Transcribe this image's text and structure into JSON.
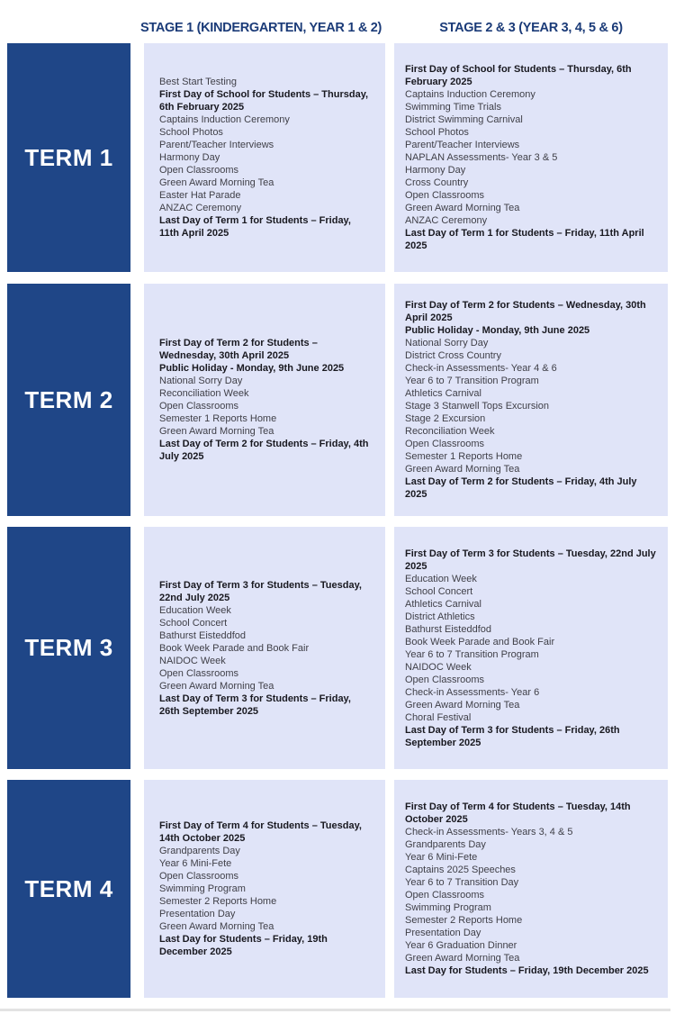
{
  "headers": {
    "stage1": "STAGE 1 (KINDERGARTEN, YEAR 1 & 2)",
    "stage23": "STAGE 2 & 3 (YEAR 3, 4, 5 & 6)"
  },
  "colors": {
    "term_box_blue": "#1f4687",
    "panel_lavender": "#e0e4f8",
    "header_navy": "#1b3b78",
    "body_text": "#3f3f47",
    "bold_text": "#191920"
  },
  "terms": [
    {
      "label": "TERM 1",
      "stage1": [
        {
          "text": "Best Start Testing",
          "bold": false
        },
        {
          "text": "First Day of School for Students – Thursday, 6th February 2025",
          "bold": true
        },
        {
          "text": "Captains Induction Ceremony",
          "bold": false
        },
        {
          "text": "School Photos",
          "bold": false
        },
        {
          "text": "Parent/Teacher Interviews",
          "bold": false
        },
        {
          "text": "Harmony Day",
          "bold": false
        },
        {
          "text": "Open Classrooms",
          "bold": false
        },
        {
          "text": "Green Award Morning Tea",
          "bold": false
        },
        {
          "text": "Easter Hat Parade",
          "bold": false
        },
        {
          "text": "ANZAC Ceremony",
          "bold": false
        },
        {
          "text": "Last Day of Term 1 for Students – Friday, 11th April 2025",
          "bold": true
        }
      ],
      "stage23": [
        {
          "text": "First Day of School for Students – Thursday, 6th February 2025",
          "bold": true
        },
        {
          "text": "Captains Induction Ceremony",
          "bold": false
        },
        {
          "text": "Swimming Time Trials",
          "bold": false
        },
        {
          "text": "District Swimming Carnival",
          "bold": false
        },
        {
          "text": "School Photos",
          "bold": false
        },
        {
          "text": "Parent/Teacher Interviews",
          "bold": false
        },
        {
          "text": "NAPLAN Assessments- Year 3 & 5",
          "bold": false
        },
        {
          "text": "Harmony Day",
          "bold": false
        },
        {
          "text": "Cross Country",
          "bold": false
        },
        {
          "text": "Open Classrooms",
          "bold": false
        },
        {
          "text": "Green Award Morning Tea",
          "bold": false
        },
        {
          "text": "ANZAC Ceremony",
          "bold": false
        },
        {
          "text": "Last Day of Term 1 for Students – Friday, 11th April 2025",
          "bold": true
        }
      ]
    },
    {
      "label": "TERM 2",
      "stage1": [
        {
          "text": "First Day of Term 2 for Students – Wednesday, 30th April 2025",
          "bold": true
        },
        {
          "text": "Public Holiday - Monday, 9th June 2025",
          "bold": true
        },
        {
          "text": "National Sorry Day",
          "bold": false
        },
        {
          "text": "Reconciliation Week",
          "bold": false
        },
        {
          "text": "Open Classrooms",
          "bold": false
        },
        {
          "text": "Semester 1 Reports Home",
          "bold": false
        },
        {
          "text": "Green Award Morning Tea",
          "bold": false
        },
        {
          "text": "Last Day of Term 2 for Students – Friday, 4th July 2025",
          "bold": true
        }
      ],
      "stage23": [
        {
          "text": "First Day of Term 2 for Students – Wednesday, 30th April 2025",
          "bold": true
        },
        {
          "text": "Public Holiday - Monday, 9th June 2025",
          "bold": true
        },
        {
          "text": "National Sorry Day",
          "bold": false
        },
        {
          "text": "District Cross Country",
          "bold": false
        },
        {
          "text": "Check-in Assessments- Year 4 & 6",
          "bold": false
        },
        {
          "text": "Year 6 to 7 Transition Program",
          "bold": false
        },
        {
          "text": "Athletics Carnival",
          "bold": false
        },
        {
          "text": "Stage 3 Stanwell Tops Excursion",
          "bold": false
        },
        {
          "text": "Stage 2 Excursion",
          "bold": false
        },
        {
          "text": "Reconciliation Week",
          "bold": false
        },
        {
          "text": "Open Classrooms",
          "bold": false
        },
        {
          "text": "Semester 1 Reports Home",
          "bold": false
        },
        {
          "text": "Green Award Morning Tea",
          "bold": false
        },
        {
          "text": "Last Day of Term 2 for Students – Friday, 4th July 2025",
          "bold": true
        }
      ]
    },
    {
      "label": "TERM 3",
      "stage1": [
        {
          "text": "First Day of Term 3 for Students – Tuesday, 22nd July 2025",
          "bold": true
        },
        {
          "text": "Education Week",
          "bold": false
        },
        {
          "text": "School Concert",
          "bold": false
        },
        {
          "text": "Bathurst Eisteddfod",
          "bold": false
        },
        {
          "text": "Book Week Parade and Book Fair",
          "bold": false
        },
        {
          "text": "NAIDOC Week",
          "bold": false
        },
        {
          "text": "Open Classrooms",
          "bold": false
        },
        {
          "text": "Green Award Morning Tea",
          "bold": false
        },
        {
          "text": "Last Day of Term 3 for Students – Friday, 26th September 2025",
          "bold": true
        }
      ],
      "stage23": [
        {
          "text": "First Day of Term 3 for Students – Tuesday, 22nd July 2025",
          "bold": true
        },
        {
          "text": "Education Week",
          "bold": false
        },
        {
          "text": "School Concert",
          "bold": false
        },
        {
          "text": "Athletics Carnival",
          "bold": false
        },
        {
          "text": "District Athletics",
          "bold": false
        },
        {
          "text": "Bathurst Eisteddfod",
          "bold": false
        },
        {
          "text": "Book Week Parade and Book Fair",
          "bold": false
        },
        {
          "text": "Year 6 to 7 Transition Program",
          "bold": false
        },
        {
          "text": "NAIDOC Week",
          "bold": false
        },
        {
          "text": "Open Classrooms",
          "bold": false
        },
        {
          "text": "Check-in Assessments- Year 6",
          "bold": false
        },
        {
          "text": "Green Award Morning Tea",
          "bold": false
        },
        {
          "text": "Choral Festival",
          "bold": false
        },
        {
          "text": "Last Day of Term 3 for Students – Friday, 26th September 2025",
          "bold": true
        }
      ]
    },
    {
      "label": "TERM 4",
      "stage1": [
        {
          "text": "First Day of Term 4 for Students – Tuesday, 14th October 2025",
          "bold": true
        },
        {
          "text": "Grandparents Day",
          "bold": false
        },
        {
          "text": "Year 6 Mini-Fete",
          "bold": false
        },
        {
          "text": "Open Classrooms",
          "bold": false
        },
        {
          "text": "Swimming Program",
          "bold": false
        },
        {
          "text": "Semester 2 Reports Home",
          "bold": false
        },
        {
          "text": "Presentation Day",
          "bold": false
        },
        {
          "text": "Green Award Morning Tea",
          "bold": false
        },
        {
          "text": "Last Day for Students – Friday, 19th December 2025",
          "bold": true
        }
      ],
      "stage23": [
        {
          "text": "First Day of Term 4 for Students – Tuesday, 14th October 2025",
          "bold": true
        },
        {
          "text": "Check-in Assessments- Years 3, 4 & 5",
          "bold": false
        },
        {
          "text": "Grandparents Day",
          "bold": false
        },
        {
          "text": "Year 6 Mini-Fete",
          "bold": false
        },
        {
          "text": "Captains 2025 Speeches",
          "bold": false
        },
        {
          "text": "Year 6 to 7 Transition Day",
          "bold": false
        },
        {
          "text": "Open Classrooms",
          "bold": false
        },
        {
          "text": "Swimming Program",
          "bold": false
        },
        {
          "text": "Semester 2 Reports Home",
          "bold": false
        },
        {
          "text": "Presentation Day",
          "bold": false
        },
        {
          "text": "Year 6 Graduation Dinner",
          "bold": false
        },
        {
          "text": "Green Award Morning Tea",
          "bold": false
        },
        {
          "text": "Last Day for Students – Friday, 19th December 2025",
          "bold": true
        }
      ]
    }
  ]
}
